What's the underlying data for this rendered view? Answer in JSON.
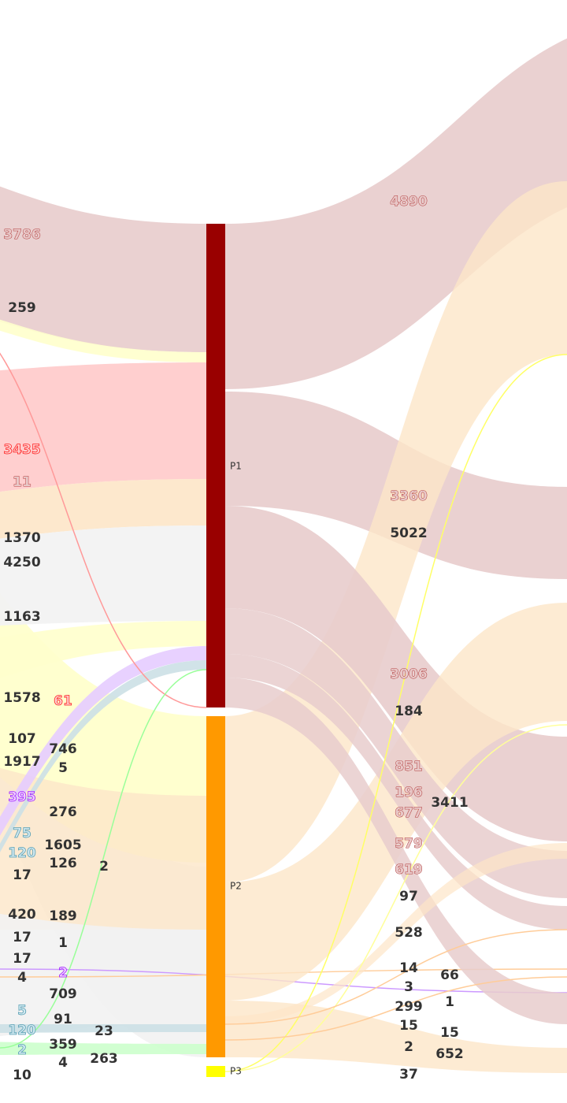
{
  "colors": {
    "P1": "#990000",
    "P2": "#ff9900",
    "P3": "#ffff00",
    "link_red": "#e8cccc",
    "link_orange": "#fde6c8",
    "link_pink": "#ffcccc",
    "link_yellow": "#ffffcc",
    "link_gray": "#f2f2f2",
    "link_purple": "#e6ccff",
    "link_teal": "#cce0e6",
    "link_green": "#ccffcc"
  },
  "nodes": [
    {
      "label": "P1"
    },
    {
      "label": "P2"
    },
    {
      "label": "P3"
    }
  ],
  "left_labels": [
    {
      "text": "3786",
      "style": "red"
    },
    {
      "text": "259",
      "style": "dark"
    },
    {
      "text": "3435",
      "style": "pink"
    },
    {
      "text": "11",
      "style": "red"
    },
    {
      "text": "1370",
      "style": "dark"
    },
    {
      "text": "4250",
      "style": "dark"
    },
    {
      "text": "1163",
      "style": "dark"
    },
    {
      "text": "1578",
      "style": "dark"
    },
    {
      "text": "61",
      "style": "pink"
    },
    {
      "text": "107",
      "style": "dark"
    },
    {
      "text": "746",
      "style": "dark"
    },
    {
      "text": "1917",
      "style": "dark"
    },
    {
      "text": "5",
      "style": "dark"
    },
    {
      "text": "395",
      "style": "purple"
    },
    {
      "text": "276",
      "style": "dark"
    },
    {
      "text": "75",
      "style": "teal"
    },
    {
      "text": "1605",
      "style": "dark"
    },
    {
      "text": "120",
      "style": "teal"
    },
    {
      "text": "126",
      "style": "dark"
    },
    {
      "text": "2",
      "style": "dark"
    },
    {
      "text": "17",
      "style": "dark"
    },
    {
      "text": "420",
      "style": "dark"
    },
    {
      "text": "189",
      "style": "dark"
    },
    {
      "text": "17",
      "style": "dark"
    },
    {
      "text": "1",
      "style": "dark"
    },
    {
      "text": "17",
      "style": "dark"
    },
    {
      "text": "2",
      "style": "purple"
    },
    {
      "text": "4",
      "style": "dark"
    },
    {
      "text": "709",
      "style": "dark"
    },
    {
      "text": "5",
      "style": "teal"
    },
    {
      "text": "91",
      "style": "dark"
    },
    {
      "text": "120",
      "style": "teal"
    },
    {
      "text": "23",
      "style": "dark"
    },
    {
      "text": "359",
      "style": "dark"
    },
    {
      "text": "2",
      "style": "teal"
    },
    {
      "text": "263",
      "style": "dark"
    },
    {
      "text": "4",
      "style": "dark"
    },
    {
      "text": "10",
      "style": "dark"
    }
  ],
  "right_labels": [
    {
      "text": "4890",
      "style": "red"
    },
    {
      "text": "3360",
      "style": "red"
    },
    {
      "text": "5022",
      "style": "dark"
    },
    {
      "text": "3006",
      "style": "red"
    },
    {
      "text": "184",
      "style": "dark"
    },
    {
      "text": "851",
      "style": "red"
    },
    {
      "text": "196",
      "style": "red"
    },
    {
      "text": "3411",
      "style": "dark"
    },
    {
      "text": "677",
      "style": "red"
    },
    {
      "text": "579",
      "style": "red"
    },
    {
      "text": "619",
      "style": "red"
    },
    {
      "text": "97",
      "style": "dark"
    },
    {
      "text": "528",
      "style": "dark"
    },
    {
      "text": "14",
      "style": "dark"
    },
    {
      "text": "66",
      "style": "dark"
    },
    {
      "text": "3",
      "style": "dark"
    },
    {
      "text": "1",
      "style": "dark"
    },
    {
      "text": "299",
      "style": "dark"
    },
    {
      "text": "15",
      "style": "dark"
    },
    {
      "text": "15",
      "style": "dark"
    },
    {
      "text": "2",
      "style": "dark"
    },
    {
      "text": "652",
      "style": "dark"
    },
    {
      "text": "37",
      "style": "dark"
    }
  ]
}
